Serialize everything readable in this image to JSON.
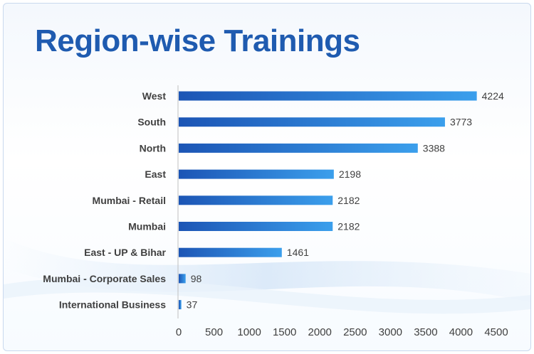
{
  "title": "Region-wise Trainings",
  "colors": {
    "title": "#1f5bb0",
    "bar_start": "#1c55b5",
    "bar_end": "#3b9fec",
    "axis": "#bfbfbf",
    "text": "#404040"
  },
  "chart_data": {
    "type": "bar",
    "orientation": "horizontal",
    "title": "Region-wise Trainings",
    "categories": [
      "West",
      "South",
      "North",
      "East",
      "Mumbai - Retail",
      "Mumbai",
      "East - UP & Bihar",
      "Mumbai - Corporate Sales",
      "International Business"
    ],
    "values": [
      4224,
      3773,
      3388,
      2198,
      2182,
      2182,
      1461,
      98,
      37
    ],
    "xlim": [
      0,
      4500
    ],
    "xticks": [
      0,
      500,
      1000,
      1500,
      2000,
      2500,
      3000,
      3500,
      4000,
      4500
    ],
    "xlabel": "",
    "ylabel": "",
    "grid": false,
    "legend": "none",
    "data_labels": true
  }
}
